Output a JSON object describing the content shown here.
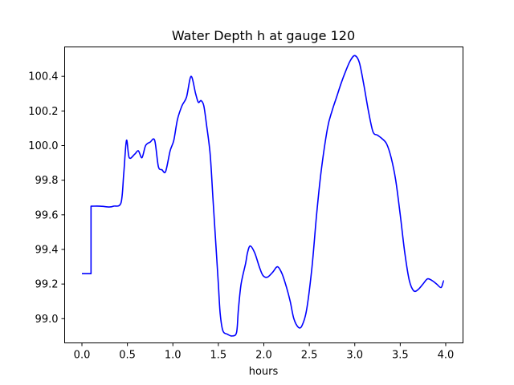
{
  "chart_data": {
    "type": "line",
    "title": "Water Depth h at gauge 120",
    "xlabel": "hours",
    "ylabel": "",
    "xlim": [
      -0.19,
      4.19
    ],
    "ylim": [
      98.86,
      100.57
    ],
    "grid": false,
    "x_ticks": [
      0.0,
      0.5,
      1.0,
      1.5,
      2.0,
      2.5,
      3.0,
      3.5,
      4.0
    ],
    "x_tick_labels": [
      "0.0",
      "0.5",
      "1.0",
      "1.5",
      "2.0",
      "2.5",
      "3.0",
      "3.5",
      "4.0"
    ],
    "y_ticks": [
      99.0,
      99.2,
      99.4,
      99.6,
      99.8,
      100.0,
      100.2,
      100.4
    ],
    "y_tick_labels": [
      "99.0",
      "99.2",
      "99.4",
      "99.6",
      "99.8",
      "100.0",
      "100.2",
      "100.4"
    ],
    "series": [
      {
        "color": "#0000ff",
        "x": [
          0.0,
          0.1,
          0.1,
          0.2,
          0.3,
          0.35,
          0.43,
          0.46,
          0.49,
          0.52,
          0.58,
          0.62,
          0.66,
          0.7,
          0.75,
          0.8,
          0.84,
          0.88,
          0.92,
          0.97,
          1.01,
          1.05,
          1.1,
          1.15,
          1.2,
          1.25,
          1.28,
          1.31,
          1.34,
          1.37,
          1.41,
          1.44,
          1.47,
          1.5,
          1.52,
          1.55,
          1.6,
          1.65,
          1.7,
          1.72,
          1.75,
          1.8,
          1.82,
          1.85,
          1.9,
          1.95,
          1.99,
          2.04,
          2.1,
          2.15,
          2.2,
          2.25,
          2.29,
          2.33,
          2.38,
          2.42,
          2.47,
          2.53,
          2.58,
          2.63,
          2.7,
          2.75,
          2.8,
          2.85,
          2.9,
          2.95,
          3.0,
          3.05,
          3.1,
          3.15,
          3.2,
          3.25,
          3.3,
          3.35,
          3.4,
          3.45,
          3.5,
          3.55,
          3.6,
          3.65,
          3.7,
          3.75,
          3.8,
          3.85,
          3.9,
          3.95,
          3.98
        ],
        "y": [
          99.26,
          99.26,
          99.65,
          99.65,
          99.645,
          99.65,
          99.67,
          99.84,
          100.03,
          99.93,
          99.95,
          99.97,
          99.93,
          100.0,
          100.02,
          100.03,
          99.88,
          99.86,
          99.85,
          99.97,
          100.03,
          100.15,
          100.23,
          100.28,
          100.4,
          100.3,
          100.25,
          100.26,
          100.23,
          100.12,
          99.95,
          99.7,
          99.45,
          99.2,
          99.03,
          98.93,
          98.91,
          98.9,
          98.92,
          99.05,
          99.2,
          99.32,
          99.38,
          99.42,
          99.38,
          99.3,
          99.25,
          99.24,
          99.27,
          99.3,
          99.26,
          99.18,
          99.1,
          99.0,
          98.95,
          98.96,
          99.05,
          99.3,
          99.6,
          99.85,
          100.1,
          100.2,
          100.28,
          100.36,
          100.43,
          100.49,
          100.52,
          100.48,
          100.35,
          100.2,
          100.08,
          100.06,
          100.04,
          100.01,
          99.93,
          99.8,
          99.6,
          99.38,
          99.22,
          99.16,
          99.17,
          99.2,
          99.23,
          99.22,
          99.2,
          99.18,
          99.22
        ]
      }
    ]
  }
}
